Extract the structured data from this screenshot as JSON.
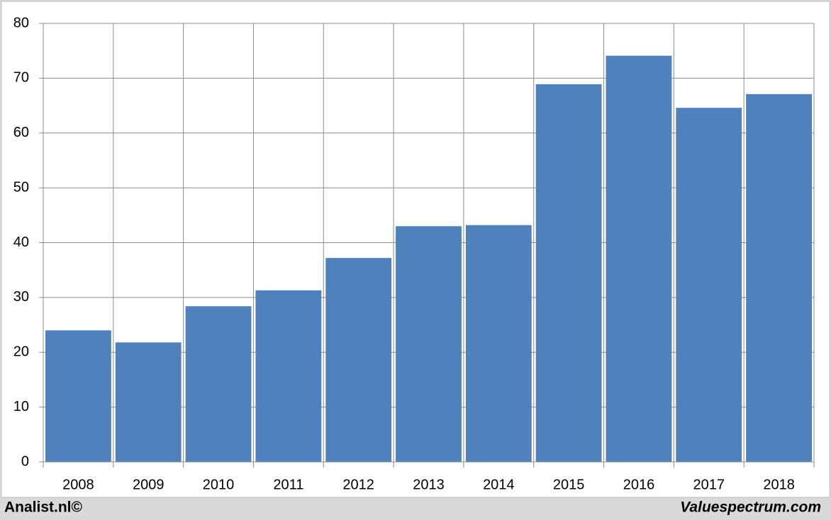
{
  "chart_data": {
    "type": "bar",
    "categories": [
      "2008",
      "2009",
      "2010",
      "2011",
      "2012",
      "2013",
      "2014",
      "2015",
      "2016",
      "2017",
      "2018"
    ],
    "values": [
      24.0,
      21.8,
      28.4,
      31.3,
      37.2,
      43.0,
      43.2,
      68.9,
      74.1,
      64.6,
      67.1
    ],
    "color": "#4f81bd",
    "ylim": [
      0,
      80
    ],
    "yticks": [
      0,
      10,
      20,
      30,
      40,
      50,
      60,
      70,
      80
    ],
    "grid": true,
    "annotations": [
      "Analist.nl©",
      "Valuespectrum.com"
    ]
  }
}
